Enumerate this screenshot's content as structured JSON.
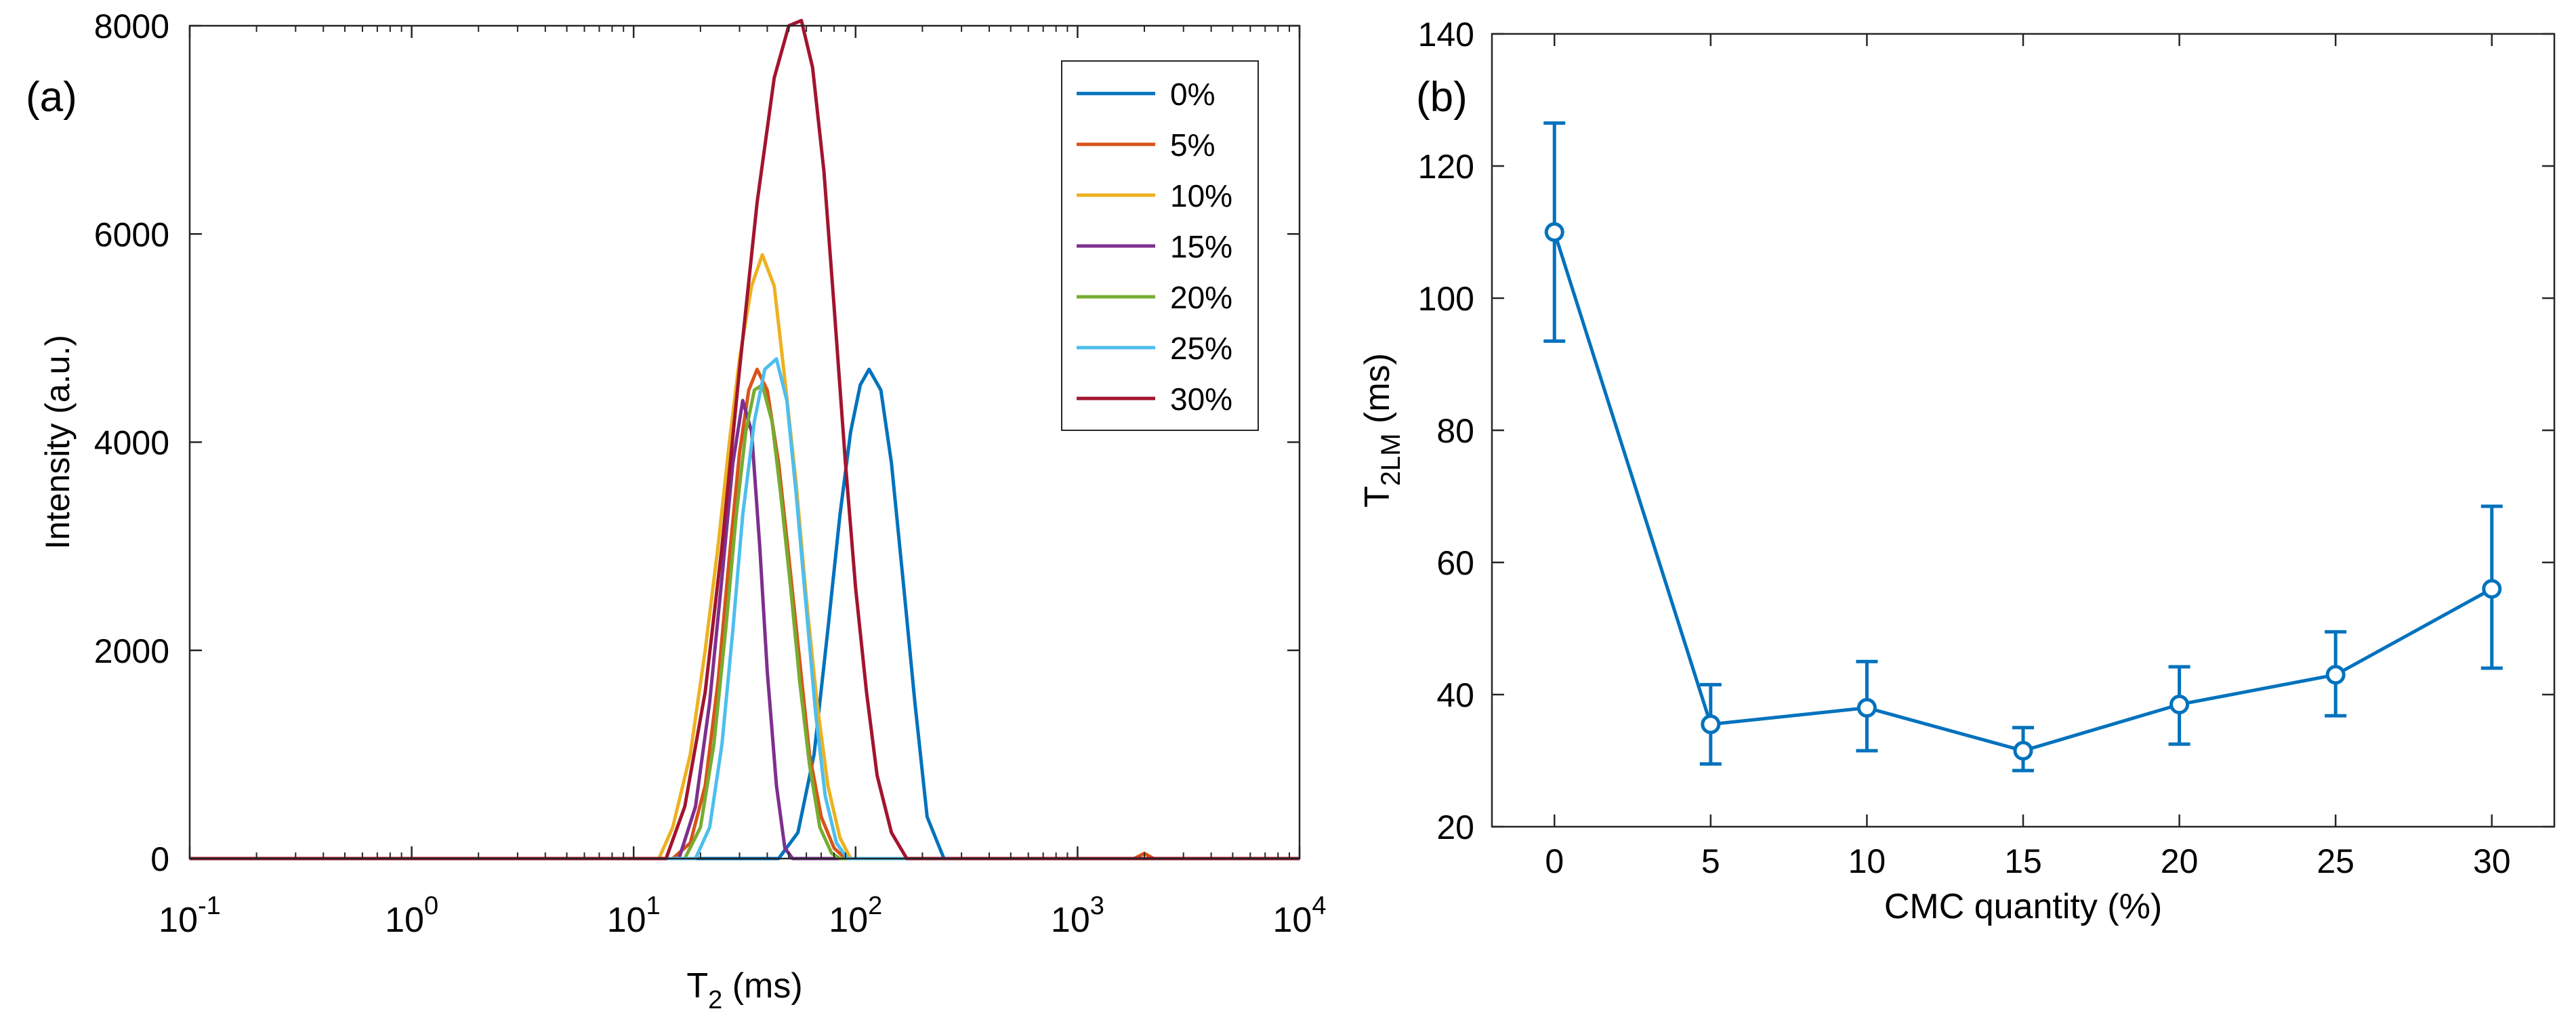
{
  "chart_data": [
    {
      "panel": "(a)",
      "type": "line",
      "title": "",
      "xlabel": {
        "main": "T",
        "sub": "2",
        "tail": " (ms)"
      },
      "ylabel": "Intensity (a.u.)",
      "xscale": "log",
      "xlim": [
        0.1,
        10000
      ],
      "ylim": [
        0,
        8000
      ],
      "x_ticks": [
        {
          "value": 0.1,
          "base": "10",
          "exp": "-1"
        },
        {
          "value": 1,
          "base": "10",
          "exp": "0"
        },
        {
          "value": 10,
          "base": "10",
          "exp": "1"
        },
        {
          "value": 100,
          "base": "10",
          "exp": "2"
        },
        {
          "value": 1000,
          "base": "10",
          "exp": "3"
        },
        {
          "value": 10000,
          "base": "10",
          "exp": "4"
        }
      ],
      "y_ticks": [
        {
          "value": 0,
          "label": "0"
        },
        {
          "value": 2000,
          "label": "2000"
        },
        {
          "value": 4000,
          "label": "4000"
        },
        {
          "value": 6000,
          "label": "6000"
        },
        {
          "value": 8000,
          "label": "8000"
        }
      ],
      "legend_position": "top-right",
      "series": [
        {
          "name": "0%",
          "color": "#0072BD",
          "points": [
            [
              0.1,
              0
            ],
            [
              45,
              0
            ],
            [
              55,
              250
            ],
            [
              65,
              1000
            ],
            [
              75,
              2200
            ],
            [
              85,
              3300
            ],
            [
              95,
              4100
            ],
            [
              105,
              4550
            ],
            [
              115,
              4700
            ],
            [
              130,
              4500
            ],
            [
              145,
              3800
            ],
            [
              165,
              2600
            ],
            [
              185,
              1500
            ],
            [
              210,
              400
            ],
            [
              250,
              0
            ],
            [
              10000,
              0
            ]
          ]
        },
        {
          "name": "5%",
          "color": "#D95319",
          "points": [
            [
              0.1,
              0
            ],
            [
              15,
              0
            ],
            [
              18,
              150
            ],
            [
              21,
              700
            ],
            [
              24,
              1700
            ],
            [
              27,
              2900
            ],
            [
              30,
              3900
            ],
            [
              33,
              4500
            ],
            [
              36,
              4700
            ],
            [
              40,
              4500
            ],
            [
              45,
              3800
            ],
            [
              50,
              2900
            ],
            [
              56,
              1900
            ],
            [
              62,
              1000
            ],
            [
              70,
              400
            ],
            [
              80,
              100
            ],
            [
              90,
              0
            ],
            [
              1800,
              0
            ],
            [
              2000,
              50
            ],
            [
              2200,
              0
            ],
            [
              10000,
              0
            ]
          ]
        },
        {
          "name": "10%",
          "color": "#EDB120",
          "points": [
            [
              0.1,
              0
            ],
            [
              13,
              0
            ],
            [
              15,
              300
            ],
            [
              18,
              1000
            ],
            [
              21,
              2000
            ],
            [
              24,
              3000
            ],
            [
              27,
              4000
            ],
            [
              30,
              4800
            ],
            [
              34,
              5500
            ],
            [
              38,
              5800
            ],
            [
              43,
              5500
            ],
            [
              48,
              4600
            ],
            [
              54,
              3600
            ],
            [
              60,
              2500
            ],
            [
              67,
              1500
            ],
            [
              75,
              700
            ],
            [
              85,
              200
            ],
            [
              95,
              0
            ],
            [
              10000,
              0
            ]
          ]
        },
        {
          "name": "15%",
          "color": "#7E2F8E",
          "points": [
            [
              0.1,
              0
            ],
            [
              16,
              0
            ],
            [
              19,
              500
            ],
            [
              22,
              1500
            ],
            [
              25,
              2700
            ],
            [
              28,
              3800
            ],
            [
              31,
              4400
            ],
            [
              34,
              4100
            ],
            [
              37,
              3000
            ],
            [
              40,
              1800
            ],
            [
              44,
              700
            ],
            [
              48,
              100
            ],
            [
              52,
              0
            ],
            [
              10000,
              0
            ]
          ]
        },
        {
          "name": "20%",
          "color": "#77AC30",
          "points": [
            [
              0.1,
              0
            ],
            [
              17,
              0
            ],
            [
              20,
              300
            ],
            [
              23,
              1100
            ],
            [
              26,
              2200
            ],
            [
              29,
              3300
            ],
            [
              32,
              4100
            ],
            [
              35,
              4500
            ],
            [
              38,
              4550
            ],
            [
              42,
              4200
            ],
            [
              46,
              3500
            ],
            [
              51,
              2600
            ],
            [
              56,
              1700
            ],
            [
              62,
              900
            ],
            [
              69,
              300
            ],
            [
              78,
              50
            ],
            [
              85,
              0
            ],
            [
              10000,
              0
            ]
          ]
        },
        {
          "name": "25%",
          "color": "#4DBEEE",
          "points": [
            [
              0.1,
              0
            ],
            [
              19,
              0
            ],
            [
              22,
              300
            ],
            [
              25,
              1100
            ],
            [
              28,
              2200
            ],
            [
              31,
              3300
            ],
            [
              35,
              4200
            ],
            [
              39,
              4700
            ],
            [
              44,
              4800
            ],
            [
              49,
              4400
            ],
            [
              54,
              3500
            ],
            [
              60,
              2400
            ],
            [
              66,
              1400
            ],
            [
              73,
              600
            ],
            [
              82,
              150
            ],
            [
              92,
              0
            ],
            [
              10000,
              0
            ]
          ]
        },
        {
          "name": "30%",
          "color": "#A2142F",
          "points": [
            [
              0.1,
              0
            ],
            [
              14,
              0
            ],
            [
              17,
              500
            ],
            [
              21,
              1600
            ],
            [
              25,
              3000
            ],
            [
              30,
              4700
            ],
            [
              36,
              6300
            ],
            [
              43,
              7500
            ],
            [
              50,
              8000
            ],
            [
              57,
              8050
            ],
            [
              64,
              7600
            ],
            [
              72,
              6600
            ],
            [
              80,
              5300
            ],
            [
              90,
              3800
            ],
            [
              100,
              2600
            ],
            [
              112,
              1600
            ],
            [
              125,
              800
            ],
            [
              145,
              250
            ],
            [
              170,
              0
            ],
            [
              10000,
              0
            ]
          ]
        }
      ]
    },
    {
      "panel": "(b)",
      "type": "line",
      "title": "",
      "xlabel": "CMC quantity (%)",
      "ylabel": {
        "main": "T",
        "sub": "2LM",
        "tail": " (ms)"
      },
      "xlim": [
        -2,
        32
      ],
      "ylim": [
        20,
        140
      ],
      "x_ticks": [
        {
          "value": 0,
          "label": "0"
        },
        {
          "value": 5,
          "label": "5"
        },
        {
          "value": 10,
          "label": "10"
        },
        {
          "value": 15,
          "label": "15"
        },
        {
          "value": 20,
          "label": "20"
        },
        {
          "value": 25,
          "label": "25"
        },
        {
          "value": 30,
          "label": "30"
        }
      ],
      "y_ticks": [
        {
          "value": 20,
          "label": "20"
        },
        {
          "value": 40,
          "label": "40"
        },
        {
          "value": 60,
          "label": "60"
        },
        {
          "value": 80,
          "label": "80"
        },
        {
          "value": 100,
          "label": "100"
        },
        {
          "value": 120,
          "label": "120"
        },
        {
          "value": 140,
          "label": "140"
        }
      ],
      "series": [
        {
          "name": "T2LM",
          "color": "#0072BD",
          "x": [
            0,
            5,
            10,
            15,
            20,
            25,
            30
          ],
          "y": [
            110,
            35.5,
            38,
            31.5,
            38.5,
            43,
            56
          ],
          "err_low": [
            93.5,
            29.5,
            31.5,
            28.5,
            32.5,
            36.8,
            44
          ],
          "err_high": [
            126.5,
            41.5,
            45,
            35,
            44.2,
            49.5,
            68.5
          ]
        }
      ]
    }
  ]
}
